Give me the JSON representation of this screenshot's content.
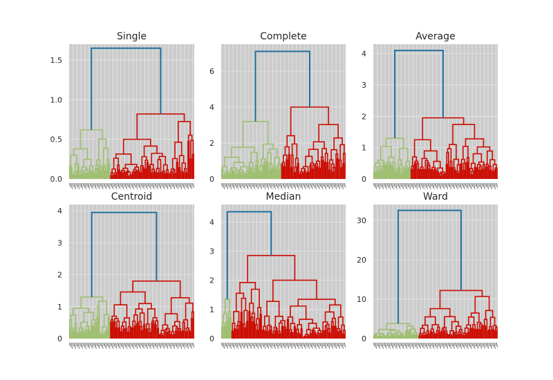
{
  "figure": {
    "colors": {
      "background": "#ffffff",
      "axes_face": "#cccccc",
      "grid": "#e6e6e6",
      "link_top": "#1f6f9f",
      "cluster_a": "#9dbf6e",
      "cluster_b": "#cc0a00",
      "text": "#262626"
    }
  },
  "chart_data": [
    {
      "type": "dendrogram",
      "title": "Single",
      "ylim": [
        0,
        1.7
      ],
      "yticks": [
        0,
        0.5,
        1.0,
        1.5
      ],
      "ytick_labels": [
        "0.0",
        "0.5",
        "1.0",
        "1.5"
      ],
      "grid": true,
      "top_merge_height": 1.65,
      "clusters": [
        {
          "color": "cluster_a",
          "height": 0.62,
          "leaf_share": 0.33,
          "typical_heights": [
            0.35,
            0.3,
            0.25,
            0.2
          ]
        },
        {
          "color": "cluster_b",
          "height": 0.82,
          "leaf_share": 0.67,
          "typical_heights": [
            0.7,
            0.55,
            0.45,
            0.4
          ]
        }
      ]
    },
    {
      "type": "dendrogram",
      "title": "Complete",
      "ylim": [
        0,
        7.5
      ],
      "yticks": [
        0,
        2,
        4,
        6
      ],
      "ytick_labels": [
        "0",
        "2",
        "4",
        "6"
      ],
      "grid": true,
      "top_merge_height": 7.1,
      "clusters": [
        {
          "color": "cluster_a",
          "height": 3.2,
          "leaf_share": 0.48,
          "typical_heights": [
            2.2,
            1.5,
            1.0,
            0.6
          ]
        },
        {
          "color": "cluster_b",
          "height": 4.0,
          "leaf_share": 0.52,
          "typical_heights": [
            2.4,
            1.6,
            1.0,
            0.6
          ]
        }
      ]
    },
    {
      "type": "dendrogram",
      "title": "Average",
      "ylim": [
        0,
        4.3
      ],
      "yticks": [
        0,
        1,
        2,
        3,
        4
      ],
      "ytick_labels": [
        "0",
        "1",
        "2",
        "3",
        "4"
      ],
      "grid": true,
      "top_merge_height": 4.1,
      "clusters": [
        {
          "color": "cluster_a",
          "height": 1.3,
          "leaf_share": 0.3,
          "typical_heights": [
            1.1,
            0.8,
            0.5,
            0.3
          ]
        },
        {
          "color": "cluster_b",
          "height": 1.95,
          "leaf_share": 0.7,
          "typical_heights": [
            1.7,
            1.2,
            0.8,
            0.5
          ]
        }
      ]
    },
    {
      "type": "dendrogram",
      "title": "Centroid",
      "ylim": [
        0,
        4.2
      ],
      "yticks": [
        0,
        1,
        2,
        3,
        4
      ],
      "ytick_labels": [
        "0",
        "1",
        "2",
        "3",
        "4"
      ],
      "grid": true,
      "top_merge_height": 3.95,
      "clusters": [
        {
          "color": "cluster_a",
          "height": 1.3,
          "leaf_share": 0.33,
          "typical_heights": [
            1.0,
            0.7,
            0.5,
            0.3
          ]
        },
        {
          "color": "cluster_b",
          "height": 1.8,
          "leaf_share": 0.67,
          "typical_heights": [
            1.7,
            1.2,
            0.8,
            0.5
          ]
        }
      ]
    },
    {
      "type": "dendrogram",
      "title": "Median",
      "ylim": [
        0,
        4.6
      ],
      "yticks": [
        0,
        1,
        2,
        3,
        4
      ],
      "ytick_labels": [
        "0",
        "1",
        "2",
        "3",
        "4"
      ],
      "grid": true,
      "top_merge_height": 4.35,
      "clusters": [
        {
          "color": "cluster_a",
          "height": 1.35,
          "leaf_share": 0.08,
          "typical_heights": [
            1.0,
            0.6,
            0.3,
            0.2
          ]
        },
        {
          "color": "cluster_b",
          "height": 2.85,
          "leaf_share": 0.92,
          "typical_heights": [
            1.45,
            1.2,
            0.9,
            0.5
          ]
        }
      ]
    },
    {
      "type": "dendrogram",
      "title": "Ward",
      "ylim": [
        0,
        34
      ],
      "yticks": [
        0,
        10,
        20,
        30
      ],
      "ytick_labels": [
        "0",
        "10",
        "20",
        "30"
      ],
      "grid": true,
      "top_merge_height": 32.5,
      "clusters": [
        {
          "color": "cluster_a",
          "height": 3.8,
          "leaf_share": 0.36,
          "typical_heights": [
            2.0,
            1.3,
            0.8,
            0.4
          ]
        },
        {
          "color": "cluster_b",
          "height": 12.2,
          "leaf_share": 0.64,
          "typical_heights": [
            6.0,
            4.7,
            2.5,
            1.2
          ]
        }
      ]
    }
  ]
}
